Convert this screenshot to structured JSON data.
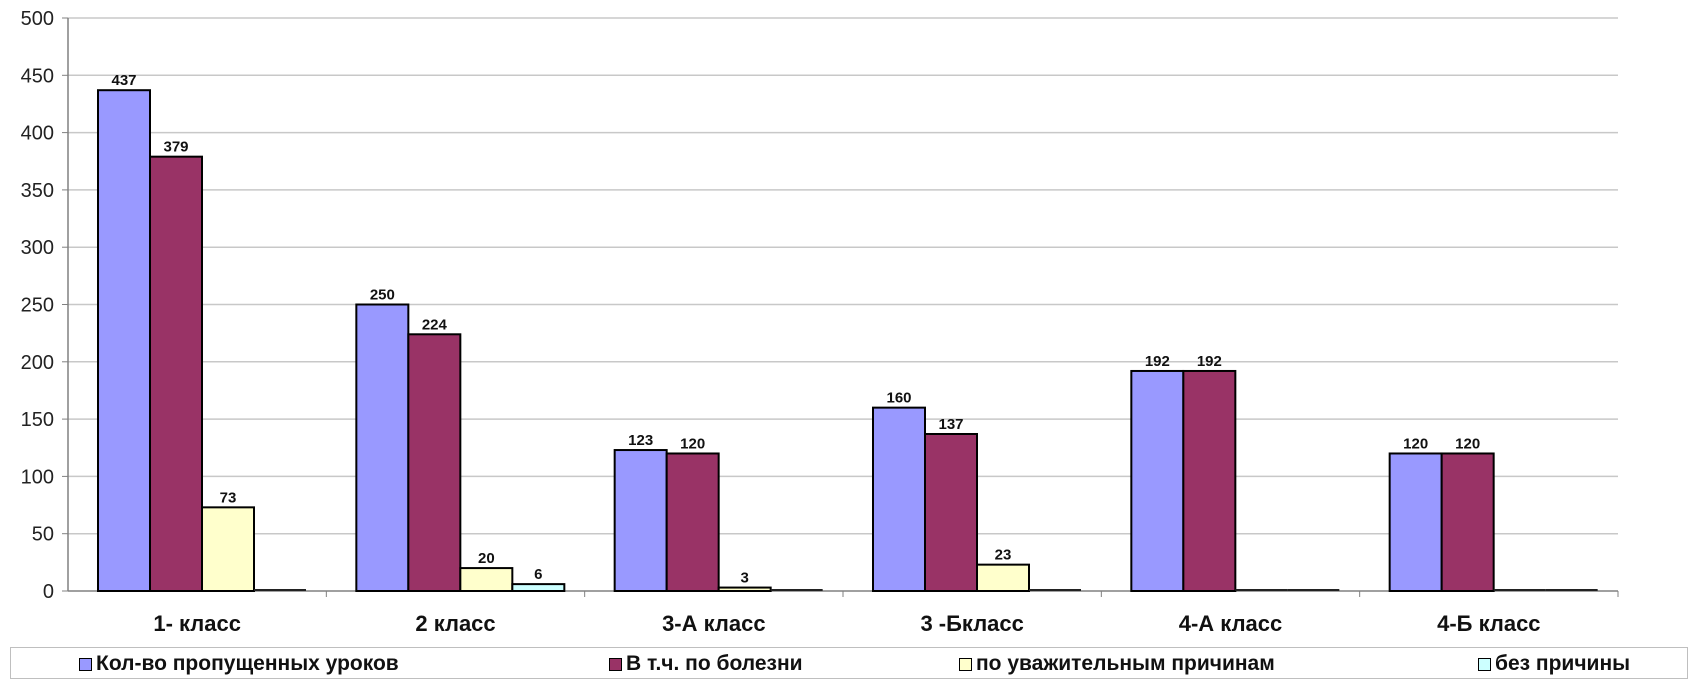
{
  "chart_data": {
    "type": "bar",
    "title": "",
    "xlabel": "",
    "ylabel": "",
    "ylim": [
      0,
      500
    ],
    "yticks": [
      0,
      50,
      100,
      150,
      200,
      250,
      300,
      350,
      400,
      450,
      500
    ],
    "grid": true,
    "legend_position": "bottom",
    "categories": [
      "1- класс",
      "2 класс",
      "3-А класс",
      "3 -Бкласс",
      "4-А класс",
      "4-Б класс"
    ],
    "series": [
      {
        "name": "Кол-во пропущенных уроков",
        "color": "#9999ff",
        "values": [
          437,
          250,
          123,
          160,
          192,
          120
        ],
        "labels": [
          "437",
          "250",
          "123",
          "160",
          "192",
          "120"
        ]
      },
      {
        "name": "В т.ч. по болезни",
        "color": "#993366",
        "values": [
          379,
          224,
          120,
          137,
          192,
          120
        ],
        "labels": [
          "379",
          "224",
          "120",
          "137",
          "192",
          "120"
        ]
      },
      {
        "name": "по уважительным причинам",
        "color": "#ffffcc",
        "values": [
          73,
          20,
          3,
          23,
          0,
          0
        ],
        "labels": [
          "73",
          "20",
          "3",
          "23",
          "",
          ""
        ]
      },
      {
        "name": "без причины",
        "color": "#ccffff",
        "values": [
          0,
          6,
          0,
          0,
          0,
          0
        ],
        "labels": [
          "",
          "6",
          "",
          "",
          "",
          ""
        ]
      }
    ]
  }
}
